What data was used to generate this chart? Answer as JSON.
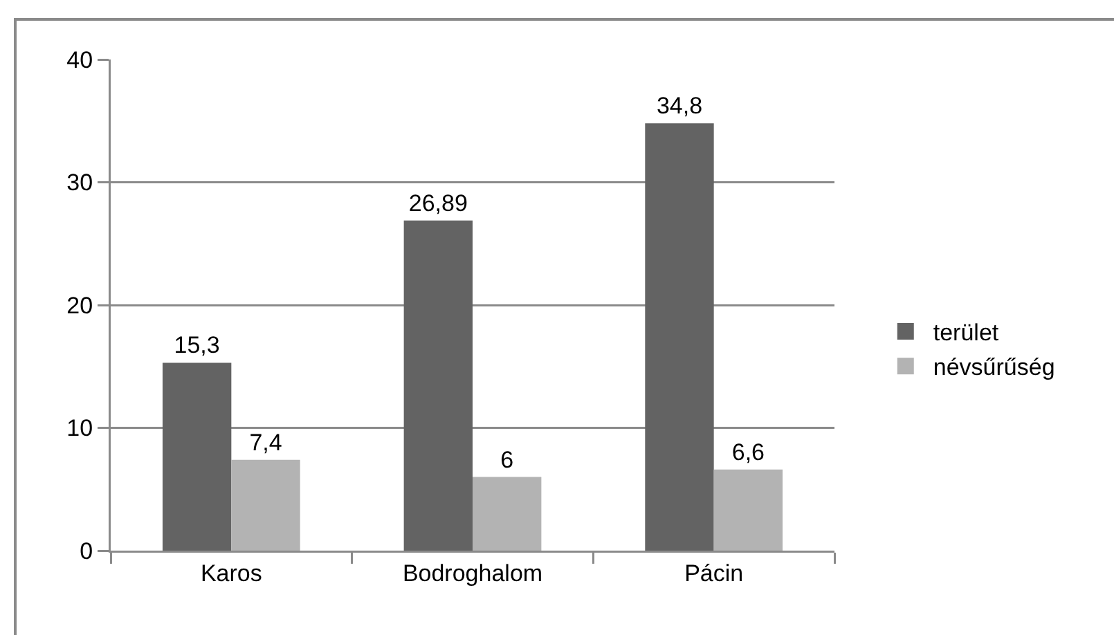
{
  "chart_data": {
    "type": "bar",
    "categories": [
      "Karos",
      "Bodroghalom",
      "Pácin"
    ],
    "series": [
      {
        "name": "terület",
        "color": "#636363",
        "values": [
          15.3,
          26.89,
          34.8
        ],
        "value_labels": [
          "15,3",
          "26,89",
          "34,8"
        ]
      },
      {
        "name": "névsűrűség",
        "color": "#b3b3b3",
        "values": [
          7.4,
          6,
          6.6
        ],
        "value_labels": [
          "7,4",
          "6",
          "6,6"
        ]
      }
    ],
    "ylim": [
      0,
      40
    ],
    "yticks": [
      0,
      10,
      20,
      30,
      40
    ],
    "grid": "y",
    "legend": "right"
  }
}
